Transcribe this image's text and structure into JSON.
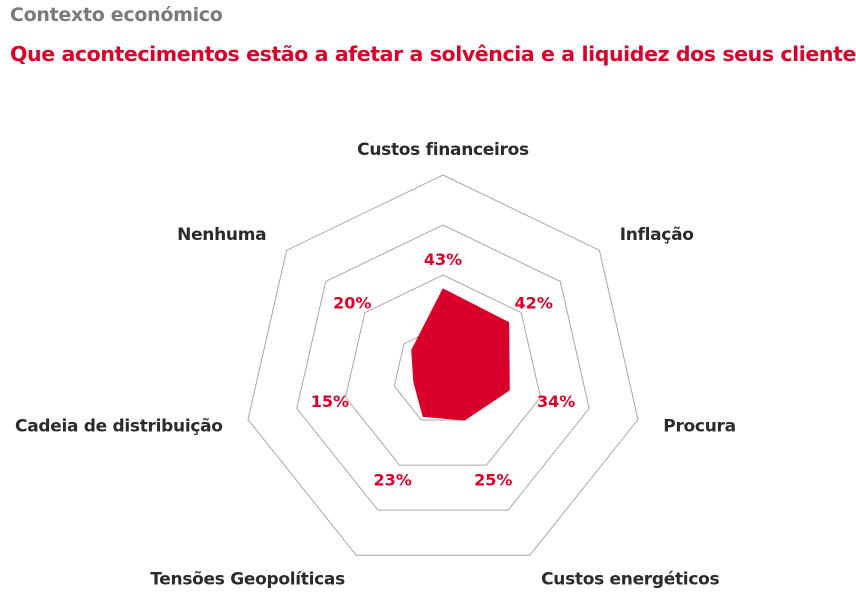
{
  "header": {
    "kicker": "Contexto económico",
    "title": "Que acontecimentos estão a afetar a solvência e a liquidez dos seus clientes?"
  },
  "colors": {
    "accent": "#d8002b",
    "grid": "#a8a8a8",
    "kicker": "#7a7a7a",
    "label": "#2b2b2b"
  },
  "chart_data": {
    "type": "radar",
    "categories": [
      "Custos financeiros",
      "Inflação",
      "Procura",
      "Custos energéticos",
      "Tensões Geopolíticas",
      "Cadeia de distribuição",
      "Nenhuma"
    ],
    "values": [
      43,
      42,
      34,
      25,
      23,
      15,
      20
    ],
    "value_labels": [
      "43%",
      "42%",
      "34%",
      "25%",
      "23%",
      "15%",
      "20%"
    ],
    "rmax": 100,
    "rings": [
      25,
      50,
      75,
      100
    ],
    "grid": true,
    "legend": "none"
  }
}
